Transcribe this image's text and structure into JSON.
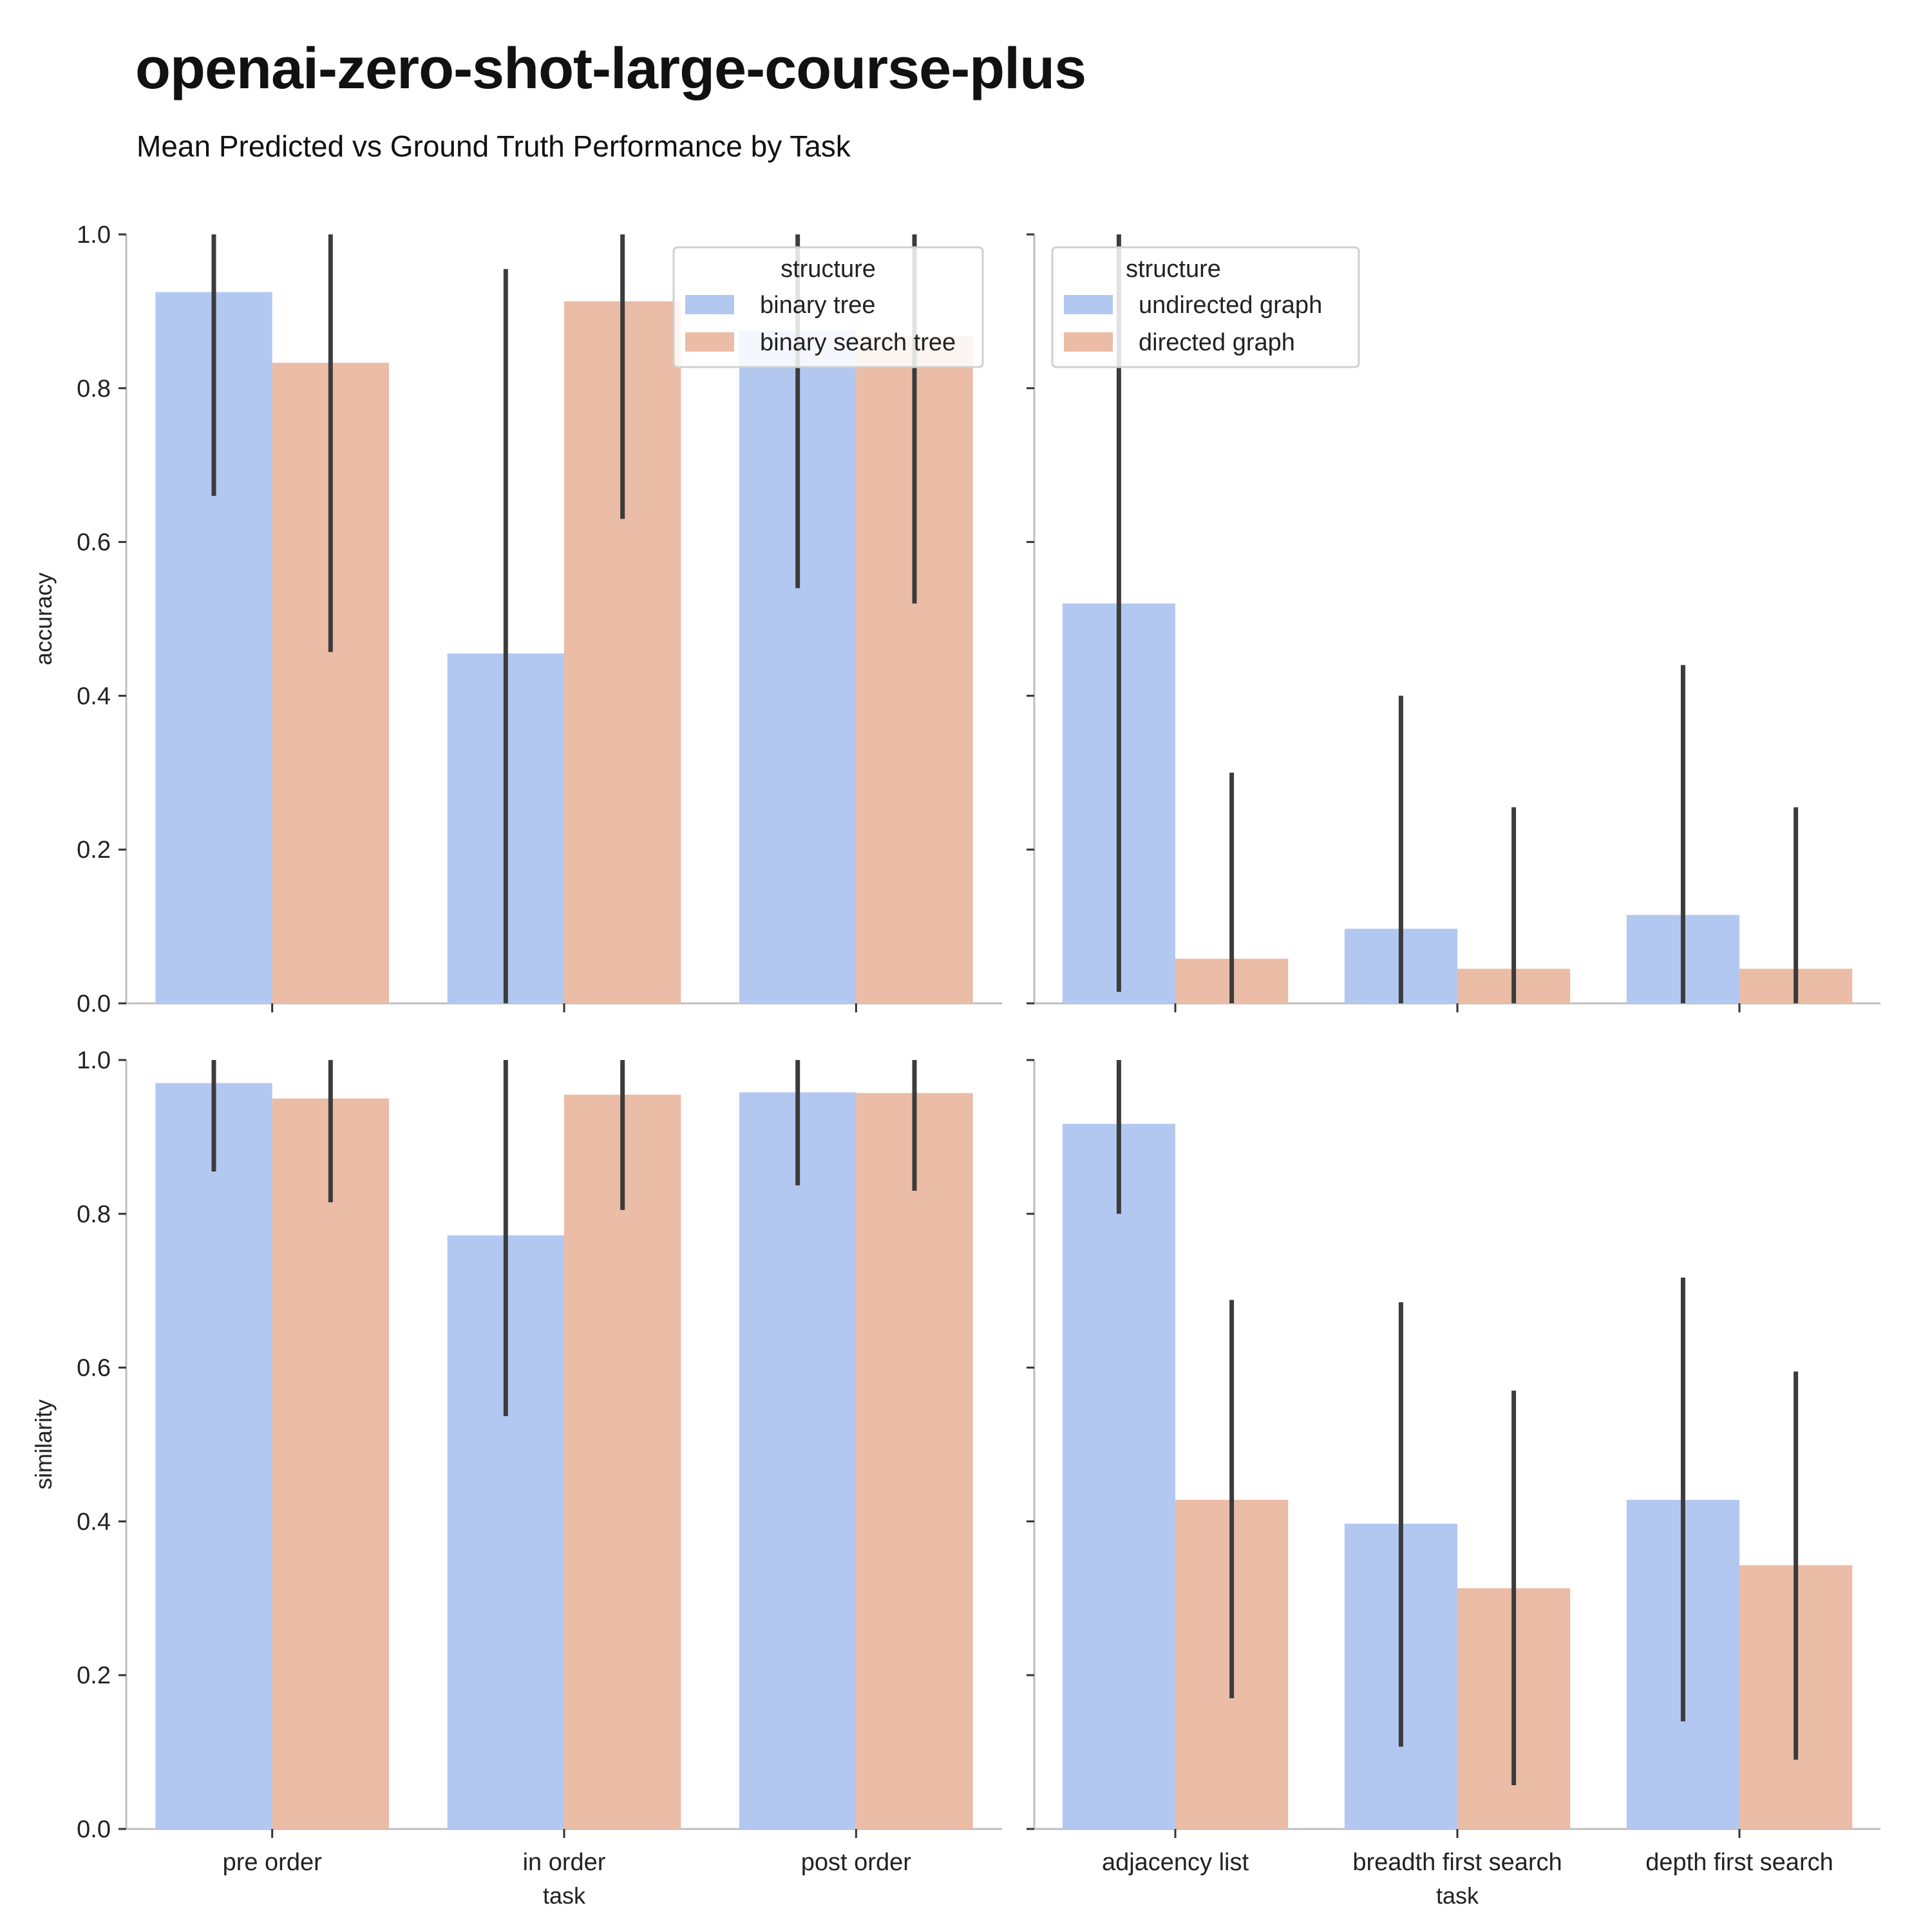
{
  "header": {
    "title": "openai-zero-shot-large-course-plus",
    "subtitle": "Mean Predicted vs Ground Truth Performance by Task"
  },
  "colors": {
    "series_a": "#b3c8f1",
    "series_b": "#ebbca6",
    "error_bar": "#3c3c3c",
    "axis": "#bfbfbf"
  },
  "chart_data": [
    {
      "type": "bar",
      "panel": "top-left",
      "ylabel": "accuracy",
      "xlabel": "",
      "ylim": [
        0,
        1.0
      ],
      "yticks": [
        "0.0",
        "0.2",
        "0.4",
        "0.6",
        "0.8",
        "1.0"
      ],
      "categories": [
        "pre order",
        "in order",
        "post order"
      ],
      "show_tick_labels": false,
      "legend": {
        "title": "structure",
        "placement": "top-right"
      },
      "series": [
        {
          "name": "binary tree",
          "values": [
            0.925,
            0.455,
            0.875
          ],
          "ci_low": [
            0.66,
            0.0,
            0.54
          ],
          "ci_high": [
            1.0,
            0.955,
            1.0
          ]
        },
        {
          "name": "binary search tree",
          "values": [
            0.833,
            0.913,
            0.868
          ],
          "ci_low": [
            0.457,
            0.63,
            0.52
          ],
          "ci_high": [
            1.0,
            1.0,
            1.0
          ]
        }
      ]
    },
    {
      "type": "bar",
      "panel": "top-right",
      "ylabel": "",
      "xlabel": "",
      "ylim": [
        0,
        1.0
      ],
      "categories": [
        "adjacency list",
        "breadth first search",
        "depth first search"
      ],
      "show_tick_labels": false,
      "legend": {
        "title": "structure",
        "placement": "top-left"
      },
      "series": [
        {
          "name": "undirected graph",
          "values": [
            0.52,
            0.097,
            0.115
          ],
          "ci_low": [
            0.015,
            0.0,
            0.0
          ],
          "ci_high": [
            1.0,
            0.4,
            0.44
          ]
        },
        {
          "name": "directed graph",
          "values": [
            0.058,
            0.045,
            0.045
          ],
          "ci_low": [
            0.0,
            0.0,
            0.0
          ],
          "ci_high": [
            0.3,
            0.255,
            0.255
          ]
        }
      ]
    },
    {
      "type": "bar",
      "panel": "bottom-left",
      "ylabel": "similarity",
      "xlabel": "task",
      "ylim": [
        0,
        1.0
      ],
      "yticks": [
        "0.0",
        "0.2",
        "0.4",
        "0.6",
        "0.8",
        "1.0"
      ],
      "categories": [
        "pre order",
        "in order",
        "post order"
      ],
      "show_tick_labels": true,
      "series": [
        {
          "name": "binary tree",
          "values": [
            0.97,
            0.772,
            0.958
          ],
          "ci_low": [
            0.855,
            0.537,
            0.837
          ],
          "ci_high": [
            1.0,
            1.0,
            1.0
          ]
        },
        {
          "name": "binary search tree",
          "values": [
            0.95,
            0.955,
            0.957
          ],
          "ci_low": [
            0.815,
            0.805,
            0.83
          ],
          "ci_high": [
            1.0,
            1.0,
            1.0
          ]
        }
      ]
    },
    {
      "type": "bar",
      "panel": "bottom-right",
      "ylabel": "",
      "xlabel": "task",
      "ylim": [
        0,
        1.0
      ],
      "categories": [
        "adjacency list",
        "breadth first search",
        "depth first search"
      ],
      "show_tick_labels": true,
      "series": [
        {
          "name": "undirected graph",
          "values": [
            0.917,
            0.397,
            0.428
          ],
          "ci_low": [
            0.8,
            0.107,
            0.14
          ],
          "ci_high": [
            1.0,
            0.685,
            0.717
          ]
        },
        {
          "name": "directed graph",
          "values": [
            0.428,
            0.313,
            0.343
          ],
          "ci_low": [
            0.17,
            0.057,
            0.09
          ],
          "ci_high": [
            0.688,
            0.57,
            0.595
          ]
        }
      ]
    }
  ]
}
